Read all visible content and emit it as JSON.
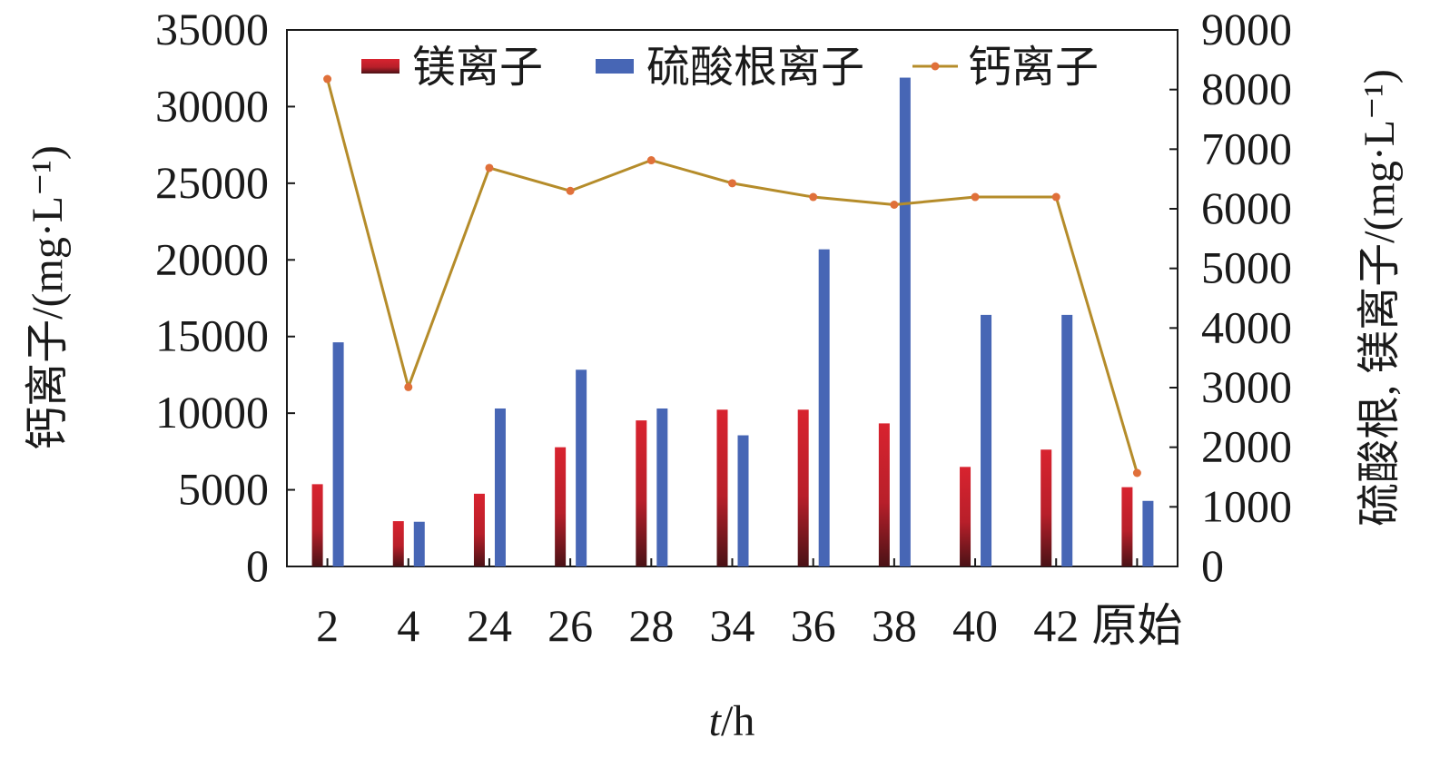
{
  "chart_data": {
    "type": "bar",
    "categories": [
      "2",
      "4",
      "24",
      "26",
      "28",
      "34",
      "36",
      "38",
      "40",
      "42",
      "原始"
    ],
    "series": [
      {
        "name": "镁离子",
        "chart": "bar",
        "axis": "right",
        "color": "#c8202b",
        "values": [
          1380,
          760,
          1220,
          2000,
          2450,
          2630,
          2630,
          2400,
          1670,
          1960,
          1330
        ]
      },
      {
        "name": "硫酸根离子",
        "chart": "bar",
        "axis": "right",
        "color": "#4766b5",
        "values": [
          3760,
          750,
          2650,
          3300,
          2650,
          2200,
          5320,
          8200,
          4220,
          4220,
          1100
        ]
      },
      {
        "name": "钙离子",
        "chart": "line",
        "axis": "left",
        "color": "#b58c2a",
        "marker_color": "#e0703a",
        "values": [
          31800,
          11700,
          26000,
          24500,
          26500,
          25000,
          24100,
          23600,
          24100,
          24100,
          6100
        ]
      }
    ],
    "left_axis": {
      "title": "钙离子/(mg·L⁻¹)",
      "ylim": [
        0,
        35000
      ],
      "ticks": [
        "0",
        "5000",
        "10000",
        "15000",
        "20000",
        "25000",
        "30000",
        "35000"
      ]
    },
    "right_axis": {
      "title": "硫酸根, 镁离子/(mg·L⁻¹)",
      "ylim": [
        0,
        9000
      ],
      "ticks": [
        "0",
        "1000",
        "2000",
        "3000",
        "4000",
        "5000",
        "6000",
        "7000",
        "8000",
        "9000"
      ]
    },
    "x_axis": {
      "title_italic": "t",
      "title_rest": "/h"
    },
    "legend": {
      "position": "top",
      "entries": [
        "镁离子",
        "硫酸根离子",
        "钙离子"
      ]
    },
    "grid": false
  }
}
